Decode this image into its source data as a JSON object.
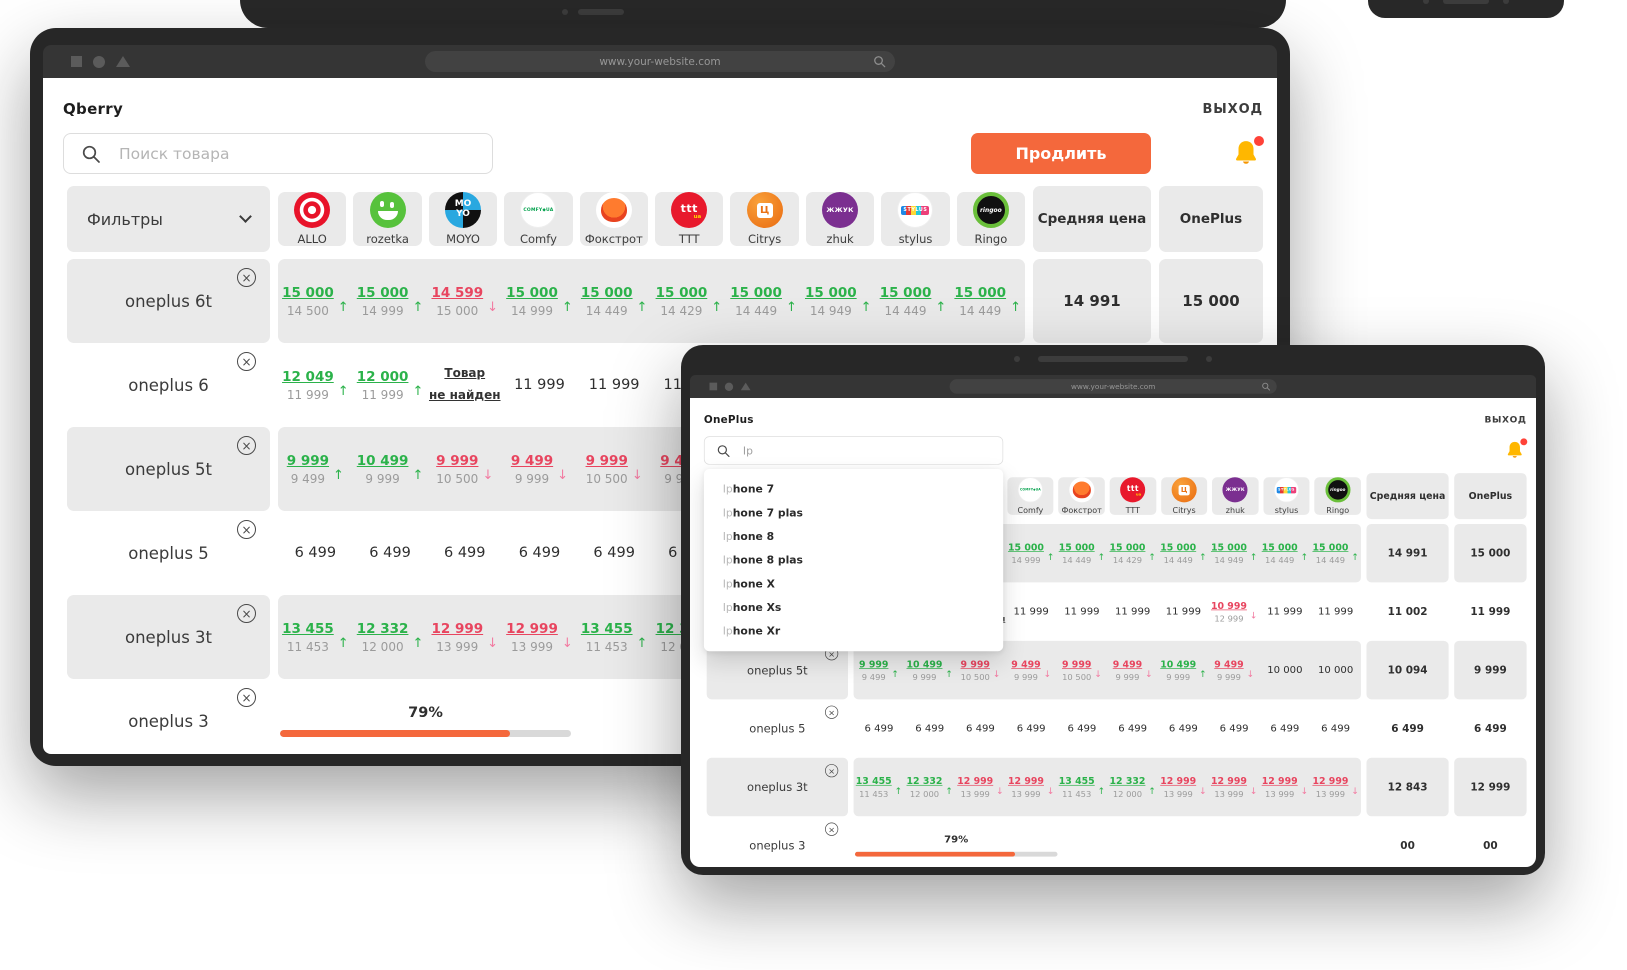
{
  "browser": {
    "url": "www.your-website.com"
  },
  "shared": {
    "logout_label": "ВЫХОД"
  },
  "back_window": {
    "brand_title": "Qberry",
    "search_placeholder": "Поиск товара",
    "extend_button": "Продлить"
  },
  "front_window": {
    "brand_title": "OnePlus",
    "search_value": "Ip",
    "dropdown": {
      "query": "Ip",
      "items": [
        "Iphone 7",
        "Iphone 7 plas",
        "Iphone 8",
        "Iphone 8 plas",
        "Iphone X",
        "Iphone Xs",
        "Iphone Xr"
      ]
    }
  },
  "glyphs": {
    "close_icon": "×",
    "up_arrow": "↑",
    "down_arrow": "↓"
  },
  "colors": {
    "accent_orange": "#f4683c",
    "price_up_green": "#2bb24a",
    "price_down_red": "#e8455f",
    "bell_yellow": "#ffb700",
    "badge_red": "#ff4238",
    "card_gray": "#eaeaea"
  },
  "table": {
    "filters_label": "Фильтры",
    "avg_header": "Средняя цена",
    "brand_header": "OnePlus",
    "retailers": [
      {
        "name": "ALLO",
        "logo": "allo",
        "logo_text": ""
      },
      {
        "name": "rozetka",
        "logo": "rozetka",
        "logo_text": ""
      },
      {
        "name": "MOYO",
        "logo": "moyo",
        "logo_text": "MO\nYO"
      },
      {
        "name": "Comfy",
        "logo": "comfy",
        "logo_text": "COMFY◆UA"
      },
      {
        "name": "Фокстрот",
        "logo": "fox",
        "logo_text": ""
      },
      {
        "name": "TTT",
        "logo": "ttt",
        "logo_text": "ttt",
        "logo_sub": "ua"
      },
      {
        "name": "Citrys",
        "logo": "citrys",
        "logo_text": "Ц"
      },
      {
        "name": "zhuk",
        "logo": "zhuk",
        "logo_text": "ЖЖУК"
      },
      {
        "name": "stylus",
        "logo": "stylus",
        "logo_text": "STYLUS"
      },
      {
        "name": "Ringo",
        "logo": "ringo",
        "logo_text": "ringoo"
      }
    ],
    "rows": [
      {
        "name": "oneplus 6t",
        "shaded": true,
        "avg": "14 991",
        "brand": "15 000",
        "cells": [
          {
            "main": "15 000",
            "sub": "14 500",
            "trend": "up"
          },
          {
            "main": "15 000",
            "sub": "14 999",
            "trend": "up"
          },
          {
            "main": "14 599",
            "sub": "15 000",
            "trend": "down"
          },
          {
            "main": "15 000",
            "sub": "14 999",
            "trend": "up"
          },
          {
            "main": "15 000",
            "sub": "14 449",
            "trend": "up"
          },
          {
            "main": "15 000",
            "sub": "14 429",
            "trend": "up"
          },
          {
            "main": "15 000",
            "sub": "14 449",
            "trend": "up"
          },
          {
            "main": "15 000",
            "sub": "14 949",
            "trend": "up"
          },
          {
            "main": "15 000",
            "sub": "14 449",
            "trend": "up"
          },
          {
            "main": "15 000",
            "sub": "14 449",
            "trend": "up"
          }
        ]
      },
      {
        "name": "oneplus 6",
        "shaded": false,
        "avg": "11 002",
        "brand": "11 999",
        "cells": [
          {
            "main": "12 049",
            "sub": "11 999",
            "trend": "up"
          },
          {
            "main": "12 000",
            "sub": "11 999",
            "trend": "up"
          },
          {
            "not_found": "Товар не найден"
          },
          {
            "main": "11 999",
            "trend": "flat"
          },
          {
            "main": "11 999",
            "trend": "flat"
          },
          {
            "main": "11 999",
            "trend": "flat"
          },
          {
            "main": "11 999",
            "trend": "flat"
          },
          {
            "main": "10 999",
            "sub": "12 999",
            "trend": "down"
          },
          {
            "main": "11 999",
            "trend": "flat"
          },
          {
            "main": "11 999",
            "trend": "flat"
          }
        ]
      },
      {
        "name": "oneplus 5t",
        "shaded": true,
        "avg": "10 094",
        "brand": "9 999",
        "cells": [
          {
            "main": "9 999",
            "sub": "9 499",
            "trend": "up"
          },
          {
            "main": "10 499",
            "sub": "9 999",
            "trend": "up"
          },
          {
            "main": "9 999",
            "sub": "10 500",
            "trend": "down"
          },
          {
            "main": "9 499",
            "sub": "9 999",
            "trend": "down"
          },
          {
            "main": "9 999",
            "sub": "10 500",
            "trend": "down"
          },
          {
            "main": "9 499",
            "sub": "9 999",
            "trend": "down"
          },
          {
            "main": "10 499",
            "sub": "9 999",
            "trend": "up"
          },
          {
            "main": "9 499",
            "sub": "9 999",
            "trend": "down"
          },
          {
            "main": "10 000",
            "trend": "flat"
          },
          {
            "main": "10 000",
            "trend": "flat"
          }
        ]
      },
      {
        "name": "oneplus 5",
        "shaded": false,
        "avg": "6 499",
        "brand": "6 499",
        "cells": [
          {
            "main": "6 499",
            "trend": "flat"
          },
          {
            "main": "6 499",
            "trend": "flat"
          },
          {
            "main": "6 499",
            "trend": "flat"
          },
          {
            "main": "6 499",
            "trend": "flat"
          },
          {
            "main": "6 499",
            "trend": "flat"
          },
          {
            "main": "6 499",
            "trend": "flat"
          },
          {
            "main": "6 499",
            "trend": "flat"
          },
          {
            "main": "6 499",
            "trend": "flat"
          },
          {
            "main": "6 499",
            "trend": "flat"
          },
          {
            "main": "6 499",
            "trend": "flat"
          }
        ]
      },
      {
        "name": "oneplus 3t",
        "shaded": true,
        "avg": "12 843",
        "brand": "12 999",
        "cells": [
          {
            "main": "13 455",
            "sub": "11 453",
            "trend": "up"
          },
          {
            "main": "12 332",
            "sub": "12 000",
            "trend": "up"
          },
          {
            "main": "12 999",
            "sub": "13 999",
            "trend": "down"
          },
          {
            "main": "12 999",
            "sub": "13 999",
            "trend": "down"
          },
          {
            "main": "13 455",
            "sub": "11 453",
            "trend": "up"
          },
          {
            "main": "12 332",
            "sub": "12 000",
            "trend": "up"
          },
          {
            "main": "12 999",
            "sub": "13 999",
            "trend": "down"
          },
          {
            "main": "12 999",
            "sub": "13 999",
            "trend": "down"
          },
          {
            "main": "12 999",
            "sub": "13 999",
            "trend": "down"
          },
          {
            "main": "12 999",
            "sub": "13 999",
            "trend": "down"
          }
        ]
      },
      {
        "name": "oneplus 3",
        "shaded": false,
        "avg": "00",
        "brand": "00",
        "progress": {
          "label": "79%",
          "percent": 79
        }
      }
    ]
  }
}
